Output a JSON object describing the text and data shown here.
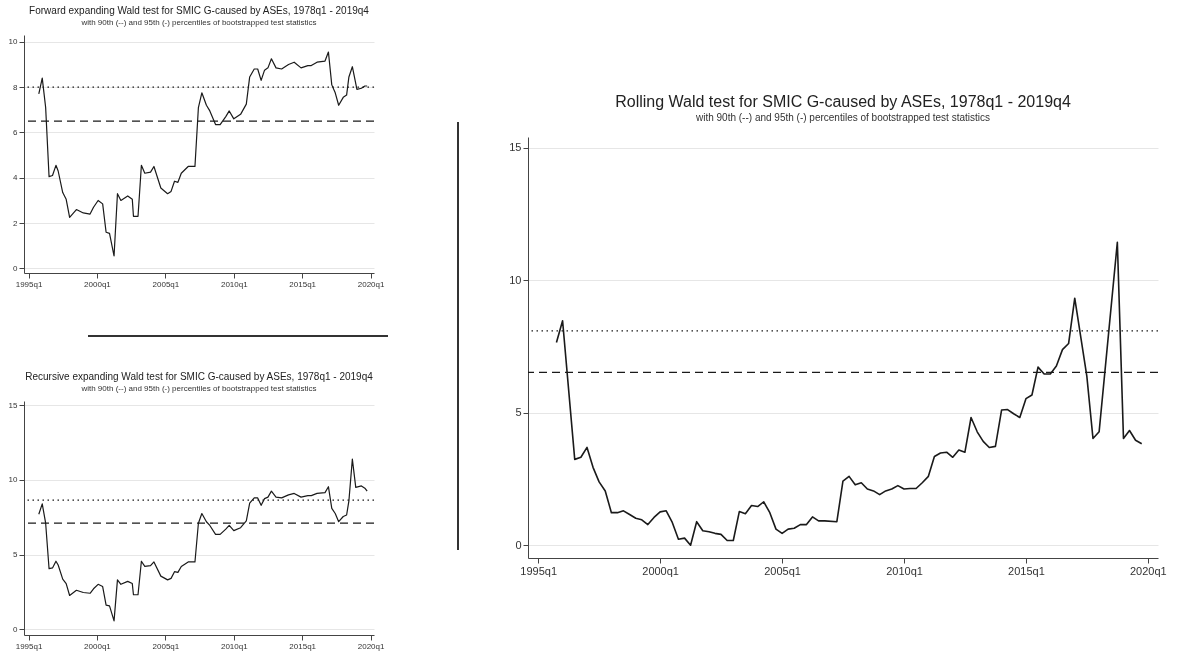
{
  "chart_data": [
    {
      "type": "line",
      "title": "Forward expanding Wald test for SMIC G-caused by ASEs, 1978q1 - 2019q4",
      "subtitle": "with 90th (--) and 95th (-) percentiles of bootstrapped test statistics",
      "x": [
        "1995-10",
        "1996-01",
        "1996-04",
        "1996-07",
        "1996-10",
        "1997-01",
        "1997-03",
        "1997-07",
        "1997-10",
        "1998-01",
        "1998-07",
        "1999-01",
        "1999-07",
        "1999-10",
        "2000-02",
        "2000-06",
        "2000-09",
        "2000-12",
        "2001-04",
        "2001-07",
        "2001-10",
        "2002-04",
        "2002-08",
        "2002-09",
        "2003-01",
        "2003-04",
        "2003-07",
        "2003-12",
        "2004-03",
        "2004-09",
        "2005-03",
        "2005-06",
        "2005-09",
        "2005-12",
        "2006-03",
        "2006-09",
        "2007-03",
        "2007-06",
        "2007-09",
        "2008-01",
        "2008-04",
        "2008-09",
        "2009-01",
        "2009-06",
        "2009-09",
        "2010-01",
        "2010-07",
        "2010-12",
        "2011-03",
        "2011-07",
        "2011-10",
        "2012-01",
        "2012-04",
        "2012-07",
        "2012-10",
        "2013-02",
        "2013-07",
        "2014-01",
        "2014-06",
        "2014-12",
        "2015-06",
        "2015-09",
        "2016-02",
        "2016-09",
        "2016-12",
        "2017-03",
        "2017-06",
        "2017-09",
        "2018-01",
        "2018-04",
        "2018-06",
        "2018-09",
        "2019-01",
        "2019-05",
        "2019-08",
        "2019-10"
      ],
      "series": [
        {
          "color": "#1a1a1a",
          "values": [
            7.7,
            8.4,
            7.1,
            4.05,
            4.1,
            4.55,
            4.3,
            3.35,
            3.05,
            2.25,
            2.6,
            2.45,
            2.4,
            2.7,
            3.0,
            2.85,
            1.6,
            1.55,
            0.55,
            3.3,
            3.0,
            3.2,
            3.05,
            2.3,
            2.3,
            4.55,
            4.2,
            4.25,
            4.5,
            3.55,
            3.3,
            3.4,
            3.85,
            3.8,
            4.2,
            4.5,
            4.5,
            7.1,
            7.75,
            7.2,
            6.95,
            6.35,
            6.35,
            6.7,
            6.95,
            6.6,
            6.8,
            7.25,
            8.45,
            8.8,
            8.8,
            8.3,
            8.75,
            8.85,
            9.25,
            8.85,
            8.8,
            9.0,
            9.1,
            8.85,
            8.95,
            8.95,
            9.1,
            9.15,
            9.55,
            8.1,
            7.75,
            7.2,
            7.55,
            7.65,
            8.45,
            8.9,
            7.9,
            7.95,
            8.05,
            8.05
          ]
        }
      ],
      "xlim": [
        "1994-09",
        "2020-04"
      ],
      "xticks": [
        {
          "value": "1995-01",
          "label": "1995q1"
        },
        {
          "value": "2000-01",
          "label": "2000q1"
        },
        {
          "value": "2005-01",
          "label": "2005q1"
        },
        {
          "value": "2010-01",
          "label": "2010q1"
        },
        {
          "value": "2015-01",
          "label": "2015q1"
        },
        {
          "value": "2020-01",
          "label": "2020q1"
        }
      ],
      "ylim": [
        -0.2,
        10.3
      ],
      "yticks": [
        0,
        2,
        4,
        6,
        8,
        10
      ],
      "ref_lines": [
        {
          "axis": "y",
          "value": 8.0,
          "line_style": "dotted",
          "color": "#1a1a1a"
        },
        {
          "axis": "y",
          "value": 6.5,
          "line_style": "dashed",
          "color": "#1a1a1a"
        }
      ],
      "grid": "y",
      "marker": "none",
      "line_style": "solid"
    },
    {
      "type": "line",
      "title": "Recursive expanding Wald test for SMIC G-caused by ASEs, 1978q1 - 2019q4",
      "subtitle": "with 90th (--) and 95th (-) percentiles of bootstrapped test statistics",
      "x": [
        "1995-10",
        "1996-01",
        "1996-04",
        "1996-07",
        "1996-10",
        "1997-01",
        "1997-03",
        "1997-07",
        "1997-10",
        "1998-01",
        "1998-07",
        "1999-01",
        "1999-07",
        "1999-10",
        "2000-02",
        "2000-06",
        "2000-09",
        "2000-12",
        "2001-04",
        "2001-07",
        "2001-10",
        "2002-04",
        "2002-08",
        "2002-09",
        "2003-01",
        "2003-04",
        "2003-07",
        "2003-12",
        "2004-03",
        "2004-09",
        "2005-03",
        "2005-06",
        "2005-09",
        "2005-12",
        "2006-03",
        "2006-09",
        "2007-03",
        "2007-06",
        "2007-09",
        "2008-01",
        "2008-04",
        "2008-09",
        "2009-01",
        "2009-06",
        "2009-09",
        "2010-01",
        "2010-07",
        "2010-12",
        "2011-03",
        "2011-07",
        "2011-10",
        "2012-01",
        "2012-04",
        "2012-07",
        "2012-10",
        "2013-02",
        "2013-07",
        "2014-01",
        "2014-06",
        "2014-12",
        "2015-06",
        "2015-09",
        "2016-02",
        "2016-09",
        "2016-12",
        "2017-03",
        "2017-06",
        "2017-09",
        "2018-01",
        "2018-04",
        "2018-06",
        "2018-09",
        "2018-12",
        "2019-05",
        "2019-08",
        "2019-10"
      ],
      "series": [
        {
          "color": "#1a1a1a",
          "values": [
            7.7,
            8.4,
            7.1,
            4.05,
            4.1,
            4.55,
            4.3,
            3.35,
            3.05,
            2.25,
            2.6,
            2.45,
            2.4,
            2.7,
            3.0,
            2.85,
            1.6,
            1.55,
            0.55,
            3.3,
            3.0,
            3.2,
            3.05,
            2.3,
            2.3,
            4.55,
            4.2,
            4.25,
            4.5,
            3.55,
            3.3,
            3.4,
            3.85,
            3.8,
            4.2,
            4.5,
            4.5,
            7.1,
            7.75,
            7.2,
            6.95,
            6.35,
            6.35,
            6.7,
            6.95,
            6.6,
            6.8,
            7.25,
            8.45,
            8.8,
            8.8,
            8.3,
            8.75,
            8.85,
            9.25,
            8.85,
            8.8,
            9.0,
            9.1,
            8.85,
            8.95,
            8.95,
            9.1,
            9.15,
            9.55,
            8.1,
            7.75,
            7.2,
            7.55,
            7.65,
            8.6,
            11.4,
            9.5,
            9.6,
            9.45,
            9.25
          ]
        }
      ],
      "xlim": [
        "1994-09",
        "2020-04"
      ],
      "xticks": [
        {
          "value": "1995-01",
          "label": "1995q1"
        },
        {
          "value": "2000-01",
          "label": "2000q1"
        },
        {
          "value": "2005-01",
          "label": "2005q1"
        },
        {
          "value": "2010-01",
          "label": "2010q1"
        },
        {
          "value": "2015-01",
          "label": "2015q1"
        },
        {
          "value": "2020-01",
          "label": "2020q1"
        }
      ],
      "ylim": [
        -0.4,
        15.3
      ],
      "yticks": [
        0,
        5,
        10,
        15
      ],
      "ref_lines": [
        {
          "axis": "y",
          "value": 8.65,
          "line_style": "dotted",
          "color": "#1a1a1a"
        },
        {
          "axis": "y",
          "value": 7.1,
          "line_style": "dashed",
          "color": "#1a1a1a"
        }
      ],
      "grid": "y",
      "marker": "none",
      "line_style": "solid"
    },
    {
      "type": "line",
      "title": "Rolling Wald test for SMIC G-caused by ASEs, 1978q1 - 2019q4",
      "subtitle": "with 90th (--) and 95th (-) percentiles of bootstrapped test statistics",
      "x": [
        "1995-10",
        "1996-01",
        "1996-07",
        "1996-10",
        "1997-01",
        "1997-04",
        "1997-07",
        "1997-10",
        "1998-01",
        "1998-04",
        "1998-07",
        "1998-10",
        "1999-01",
        "1999-04",
        "1999-07",
        "1999-10",
        "2000-01",
        "2000-04",
        "2000-07",
        "2000-10",
        "2001-01",
        "2001-04",
        "2001-07",
        "2001-10",
        "2002-01",
        "2002-04",
        "2002-07",
        "2002-10",
        "2003-01",
        "2003-04",
        "2003-07",
        "2003-10",
        "2004-01",
        "2004-04",
        "2004-07",
        "2004-10",
        "2005-01",
        "2005-04",
        "2005-07",
        "2005-10",
        "2006-01",
        "2006-04",
        "2006-07",
        "2006-10",
        "2007-04",
        "2007-07",
        "2007-10",
        "2008-01",
        "2008-04",
        "2008-07",
        "2008-10",
        "2009-01",
        "2009-04",
        "2009-07",
        "2009-10",
        "2010-01",
        "2010-04",
        "2010-07",
        "2010-10",
        "2011-01",
        "2011-04",
        "2011-07",
        "2011-10",
        "2012-01",
        "2012-04",
        "2012-07",
        "2012-10",
        "2013-01",
        "2013-04",
        "2013-07",
        "2013-10",
        "2014-01",
        "2014-04",
        "2014-07",
        "2014-10",
        "2015-01",
        "2015-04",
        "2015-07",
        "2015-10",
        "2016-01",
        "2016-04",
        "2016-07",
        "2016-10",
        "2017-01",
        "2017-07",
        "2017-10",
        "2018-01",
        "2018-10",
        "2019-01",
        "2019-04",
        "2019-07",
        "2019-10"
      ],
      "series": [
        {
          "color": "#1a1a1a",
          "values": [
            7.65,
            8.47,
            3.24,
            3.32,
            3.69,
            2.94,
            2.39,
            2.05,
            1.23,
            1.23,
            1.3,
            1.16,
            1.02,
            0.96,
            0.78,
            1.05,
            1.26,
            1.3,
            0.86,
            0.23,
            0.27,
            0.0,
            0.89,
            0.55,
            0.51,
            0.45,
            0.41,
            0.18,
            0.18,
            1.27,
            1.19,
            1.5,
            1.46,
            1.64,
            1.23,
            0.61,
            0.45,
            0.61,
            0.64,
            0.78,
            0.78,
            1.07,
            0.92,
            0.92,
            0.89,
            2.42,
            2.6,
            2.28,
            2.36,
            2.12,
            2.05,
            1.91,
            2.05,
            2.12,
            2.25,
            2.12,
            2.14,
            2.14,
            2.36,
            2.6,
            3.35,
            3.48,
            3.51,
            3.32,
            3.59,
            3.51,
            4.82,
            4.28,
            3.92,
            3.69,
            3.73,
            5.1,
            5.12,
            4.96,
            4.82,
            5.53,
            5.67,
            6.72,
            6.46,
            6.46,
            6.76,
            7.38,
            7.61,
            9.32,
            6.38,
            4.03,
            4.28,
            11.43,
            4.03,
            4.33,
            3.96,
            3.83
          ]
        }
      ],
      "xlim": [
        "1994-08",
        "2020-06"
      ],
      "xticks": [
        {
          "value": "1995-01",
          "label": "1995q1"
        },
        {
          "value": "2000-01",
          "label": "2000q1"
        },
        {
          "value": "2005-01",
          "label": "2005q1"
        },
        {
          "value": "2010-01",
          "label": "2010q1"
        },
        {
          "value": "2015-01",
          "label": "2015q1"
        },
        {
          "value": "2020-01",
          "label": "2020q1"
        }
      ],
      "ylim": [
        -0.48,
        15.4
      ],
      "yticks": [
        0,
        5,
        10,
        15
      ],
      "ref_lines": [
        {
          "axis": "y",
          "value": 8.09,
          "line_style": "dotted",
          "color": "#1a1a1a"
        },
        {
          "axis": "y",
          "value": 6.52,
          "line_style": "dashed",
          "color": "#1a1a1a"
        }
      ],
      "grid": "y",
      "marker": "none",
      "line_style": "solid"
    }
  ]
}
